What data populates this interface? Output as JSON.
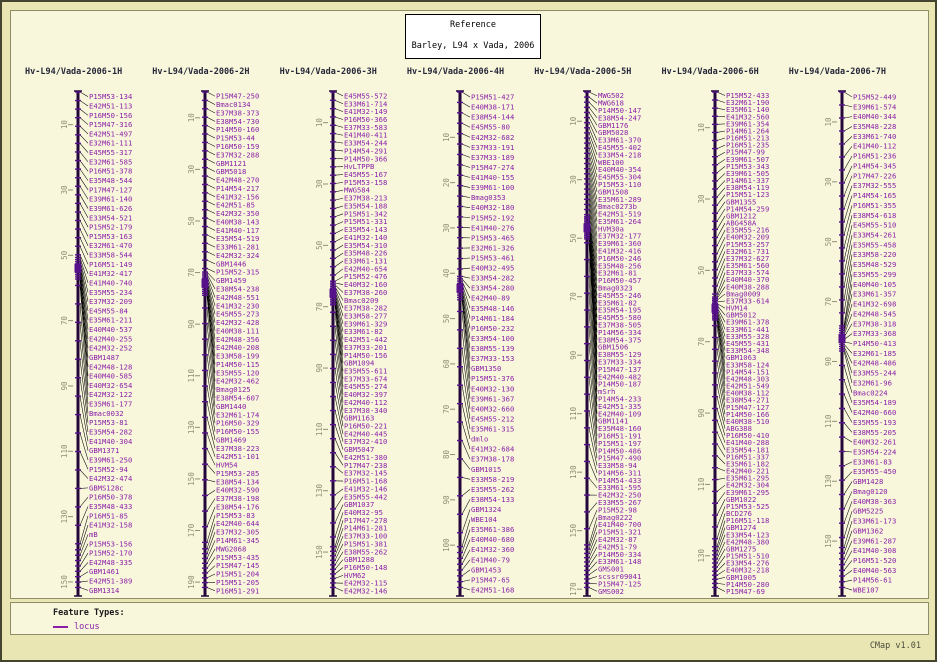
{
  "title_box": {
    "line1": "Reference",
    "line2": "Barley, L94 x Vada, 2006"
  },
  "legend": {
    "heading": "Feature Types:",
    "items": [
      {
        "label": "locus",
        "color": "#8b1fa8"
      }
    ]
  },
  "footer": {
    "version": "CMap v1.01"
  },
  "colors": {
    "page_background": "#e9e6b4",
    "panel_background": "#f8f7dc",
    "locus_label": "#8b1fa8",
    "feature_tick": "#55108a",
    "chromosome_bar": "#23063a",
    "leader_line": "#000000",
    "ruler_text": "#8f8f72",
    "ruler_tick": "#8f8f72"
  },
  "maps": [
    {
      "name": "Hv-L94/Vada-2006-1H",
      "short": "1H",
      "ruler": [
        10,
        30,
        50,
        70,
        90,
        110,
        130,
        150
      ],
      "max_cm": 154,
      "cluster": 0.35,
      "markers": [
        "P15M53-134",
        "E42M51-113",
        "P16M50-156",
        "P15M47-316",
        "E42M51-497",
        "E32M61-111",
        "E45M55-317",
        "E32M61-585",
        "P16M51-378",
        "E35M48-544",
        "P17M47-127",
        "E39M61-140",
        "E39M61-626",
        "E33M54-521",
        "P15M52-179",
        "P15M53-163",
        "E32M61-470",
        "E33M58-544",
        "P16M51-149",
        "E41M32-417",
        "E41M40-740",
        "E35M55-234",
        "E37M32-209",
        "E45M55-84",
        "E35M61-211",
        "E40M40-537",
        "E42M40-255",
        "E42M32-252",
        "GBM1487",
        "E42M48-128",
        "E40M40-585",
        "E40M32-654",
        "E42M32-122",
        "E35M61-177",
        "Bmac0032",
        "P15M53-81",
        "E35M54-282",
        "E41M40-304",
        "GBM1371",
        "E39M61-250",
        "P15M52-94",
        "E42M32-474",
        "GBMS128c",
        "P16M50-378",
        "E35M48-433",
        "P16M51-85",
        "E41M32-158",
        "mB",
        "P15M53-156",
        "P15M52-170",
        "E42M48-335",
        "GBM1461",
        "E42M51-389",
        "GBM1314"
      ]
    },
    {
      "name": "Hv-L94/Vada-2006-2H",
      "short": "2H",
      "ruler": [
        10,
        30,
        50,
        70,
        90,
        110,
        130,
        150,
        170,
        190
      ],
      "max_cm": 195,
      "cluster": 0.38,
      "markers": [
        "P15M47-250",
        "Bmac0134",
        "E37M38-373",
        "E38M54-730",
        "P14M50-160",
        "P15M53-44",
        "P16M50-159",
        "E37M32-288",
        "GBM1121",
        "GBM5018",
        "E42M48-270",
        "P14M54-217",
        "E41M32-156",
        "E42M51-85",
        "E42M32-350",
        "E40M38-143",
        "E41M40-117",
        "E35M54-519",
        "E33M61-281",
        "E42M32-324",
        "GBM1446",
        "P15M52-315",
        "GBM1459",
        "E38M54-238",
        "E42M48-551",
        "E41M32-230",
        "E45M55-273",
        "E42M32-428",
        "E40M38-111",
        "E42M48-356",
        "E42M40-208",
        "E33M58-199",
        "P14M50-115",
        "E35M55-120",
        "E42M32-462",
        "Bmag0125",
        "E38M54-607",
        "GBM1440",
        "E32M61-174",
        "P16M50-329",
        "P16M50-155",
        "GBM1469",
        "E37M38-223",
        "E42M51-101",
        "HVM54",
        "P15M53-285",
        "E38M54-134",
        "E40M32-590",
        "E37M38-198",
        "E38M54-176",
        "P15M53-83",
        "E42M40-644",
        "E37M32-305",
        "P14M61-345",
        "MWG2068",
        "P15M53-435",
        "P15M47-145",
        "P15M51-204",
        "P15M51-205",
        "P16M51-291"
      ]
    },
    {
      "name": "Hv-L94/Vada-2006-3H",
      "short": "3H",
      "ruler": [
        10,
        30,
        50,
        70,
        90,
        110,
        130,
        150
      ],
      "max_cm": 164,
      "cluster": 0.4,
      "markers": [
        "E45M55-572",
        "E33M61-714",
        "E41M32-149",
        "P16M50-366",
        "E37M33-583",
        "E41M40-411",
        "E33M54-244",
        "P14M54-291",
        "P14M50-366",
        "HvLTPPB",
        "E45M55-167",
        "P15M53-158",
        "MWG584",
        "E37M38-213",
        "E35M54-188",
        "P15M51-342",
        "P15M51-331",
        "E35M54-143",
        "E41M32-140",
        "E35M54-310",
        "E35M48-226",
        "E33M61-131",
        "E42M40-654",
        "P15M52-476",
        "E40M32-160",
        "E37M38-260",
        "Bmac0209",
        "E37M38-282",
        "E33M58-277",
        "E39M61-329",
        "E33M61-82",
        "E42M51-442",
        "E37M33-201",
        "P14M50-156",
        "GBM1094",
        "E35M55-611",
        "E37M33-674",
        "E45M55-274",
        "E40M32-397",
        "E42M40-112",
        "E37M38-340",
        "GBM1163",
        "P16M50-221",
        "E42M40-445",
        "E37M32-410",
        "GBM5047",
        "E42M51-380",
        "P17M47-238",
        "E37M32-145",
        "P16M51-168",
        "E41M32-146",
        "E35M55-442",
        "GBM1037",
        "E40M32-95",
        "P17M47-278",
        "P14M61-281",
        "E37M33-100",
        "P15M51-381",
        "E38M55-262",
        "GBM1288",
        "P16M50-148",
        "HVM62",
        "E42M32-115",
        "E42M32-146"
      ]
    },
    {
      "name": "Hv-L94/Vada-2006-4H",
      "short": "4H",
      "ruler": [
        10,
        20,
        30,
        40,
        50,
        60,
        70,
        80,
        90,
        100
      ],
      "max_cm": 111,
      "cluster": 0.39,
      "markers": [
        "P15M51-427",
        "E40M38-171",
        "E38M54-144",
        "E45M55-80",
        "E42M32-682",
        "E37M33-191",
        "E37M33-189",
        "P15M47-274",
        "E41M40-155",
        "E39M61-100",
        "Bmag0353",
        "E40M32-180",
        "P15M52-192",
        "E41M40-276",
        "P15M53-465",
        "E32M61-326",
        "P15M53-461",
        "E40M32-495",
        "E33M54-282",
        "E33M54-280",
        "E42M40-89",
        "E35M48-146",
        "P14M61-184",
        "P16M50-232",
        "E33M54-100",
        "E38M55-139",
        "E37M33-153",
        "GBM1350",
        "P15M51-376",
        "E40M32-130",
        "E39M61-367",
        "E40M32-660",
        "E45M55-212",
        "E35M61-315",
        "dmlo",
        "E41M32-684",
        "E37M38-178",
        "GBM1015",
        "E33M58-219",
        "E35M55-262",
        "E38M54-133",
        "GBM1324",
        "WBE104",
        "E35M61-386",
        "E40M40-680",
        "E41M32-360",
        "E41M40-79",
        "GBM1453",
        "P15M47-65",
        "E42M51-168"
      ]
    },
    {
      "name": "Hv-L94/Vada-2006-5H",
      "short": "5H",
      "ruler": [
        10,
        30,
        50,
        70,
        90,
        110,
        130,
        150,
        170
      ],
      "max_cm": 172,
      "cluster": 0.27,
      "markers": [
        "MWG502",
        "MWG618",
        "P14M50-147",
        "E38M54-247",
        "GBM1176",
        "GBM5028",
        "E33M61-370",
        "E45M55-402",
        "E33M54-218",
        "WBE100",
        "E40M40-354",
        "E45M55-304",
        "P15M53-110",
        "GBM1508",
        "E35M61-289",
        "Bmac0273b",
        "E42M51-519",
        "E35M61-264",
        "HVM30a",
        "E37M32-177",
        "E39M61-360",
        "E41M32-416",
        "P16M50-246",
        "E35M48-256",
        "E32M61-81",
        "P16M50-457",
        "Bmag0323",
        "E45M55-246",
        "E35M61-82",
        "E35M54-195",
        "E45M55-580",
        "E37M38-505",
        "P14M56-334",
        "E38M54-375",
        "GBM1506",
        "E38M55-129",
        "E37M33-334",
        "P15M47-137",
        "E42M40-482",
        "P14M50-187",
        "mSrh",
        "P14M54-233",
        "E42M51-335",
        "E42M40-109",
        "GBM1141",
        "E35M48-160",
        "P16M51-191",
        "P15M51-197",
        "P14M50-486",
        "P15M47-490",
        "E33M58-94",
        "P14M56-311",
        "P14M54-433",
        "E33M61-595",
        "E42M32-250",
        "E33M55-267",
        "P15M52-98",
        "Bmag0222",
        "E41M40-700",
        "P15M51-321",
        "E42M32-87",
        "E42M51-79",
        "P14M50-334",
        "E33M61-148",
        "GMS001",
        "scssr09041",
        "P15M47-125",
        "GMS002"
      ]
    },
    {
      "name": "Hv-L94/Vada-2006-6H",
      "short": "6H",
      "ruler": [
        10,
        30,
        50,
        70,
        90,
        110,
        130
      ],
      "max_cm": 141,
      "cluster": 0.43,
      "markers": [
        "P15M52-433",
        "E32M61-190",
        "E35M61-140",
        "E41M32-560",
        "E39M61-354",
        "P14M61-264",
        "P16M51-213",
        "P16M51-235",
        "P15M47-99",
        "E39M61-507",
        "P15M53-343",
        "E39M61-505",
        "P14M61-337",
        "E38M54-119",
        "P15M51-123",
        "GBM1355",
        "P14M54-259",
        "GBM1212",
        "ABG458A",
        "E35M55-216",
        "E40M32-209",
        "P15M53-257",
        "E32M61-731",
        "E37M32-627",
        "E35M61-560",
        "E37M33-574",
        "E40M40-370",
        "E40M38-288",
        "Bmag0009",
        "E37M33-614",
        "HVM14",
        "GBM5012",
        "E39M61-378",
        "E33M61-441",
        "E33M55-328",
        "E45M55-431",
        "E33M54-348",
        "GBM1063",
        "E33M58-124",
        "P14M54-151",
        "E42M48-303",
        "E42M51-549",
        "E40M38-112",
        "E38M54-271",
        "P15M47-127",
        "P14M50-166",
        "E40M38-510",
        "ABG388",
        "P16M50-410",
        "E41M40-288",
        "E35M54-181",
        "P16M51-337",
        "E35M61-182",
        "E42M40-221",
        "E35M61-295",
        "E42M32-304",
        "E39M61-295",
        "GBM1022",
        "P15M53-525",
        "BCD276",
        "P16M51-118",
        "GBM1274",
        "E33M54-123",
        "E42M48-380",
        "GBM1275",
        "P15M51-510",
        "E33M54-276",
        "E40M32-218",
        "GBM1005",
        "P14M50-280",
        "P15M47-69"
      ]
    },
    {
      "name": "Hv-L94/Vada-2006-7H",
      "short": "7H",
      "ruler": [
        10,
        30,
        50,
        70,
        90,
        110,
        130,
        150
      ],
      "max_cm": 168,
      "cluster": 0.49,
      "markers": [
        "P15M52-449",
        "E39M61-574",
        "E40M40-344",
        "E35M48-228",
        "E33M61-740",
        "E41M40-112",
        "P16M51-236",
        "P14M54-345",
        "P17M47-226",
        "E37M32-555",
        "P14M54-165",
        "P16M51-355",
        "E38M54-618",
        "E45M55-510",
        "E33M54-261",
        "E35M55-458",
        "E33M58-220",
        "E35M48-529",
        "E35M55-299",
        "E40M40-105",
        "E33M61-357",
        "E41M32-698",
        "E42M48-545",
        "E37M38-318",
        "E37M33-368",
        "P14M50-413",
        "E32M61-185",
        "E42M48-486",
        "E33M55-244",
        "E32M61-96",
        "Bmac0224",
        "E35M54-189",
        "E42M40-660",
        "E35M55-193",
        "E38M55-205",
        "E40M32-261",
        "E35M54-224",
        "E33M61-83",
        "E35M55-450",
        "GBM1428",
        "Bmag0120",
        "E40M38-363",
        "GBM5225",
        "E33M61-173",
        "GBM1362",
        "E39M61-287",
        "E41M40-308",
        "P16M51-520",
        "E40M40-563",
        "P14M56-61",
        "WBE107"
      ]
    }
  ]
}
